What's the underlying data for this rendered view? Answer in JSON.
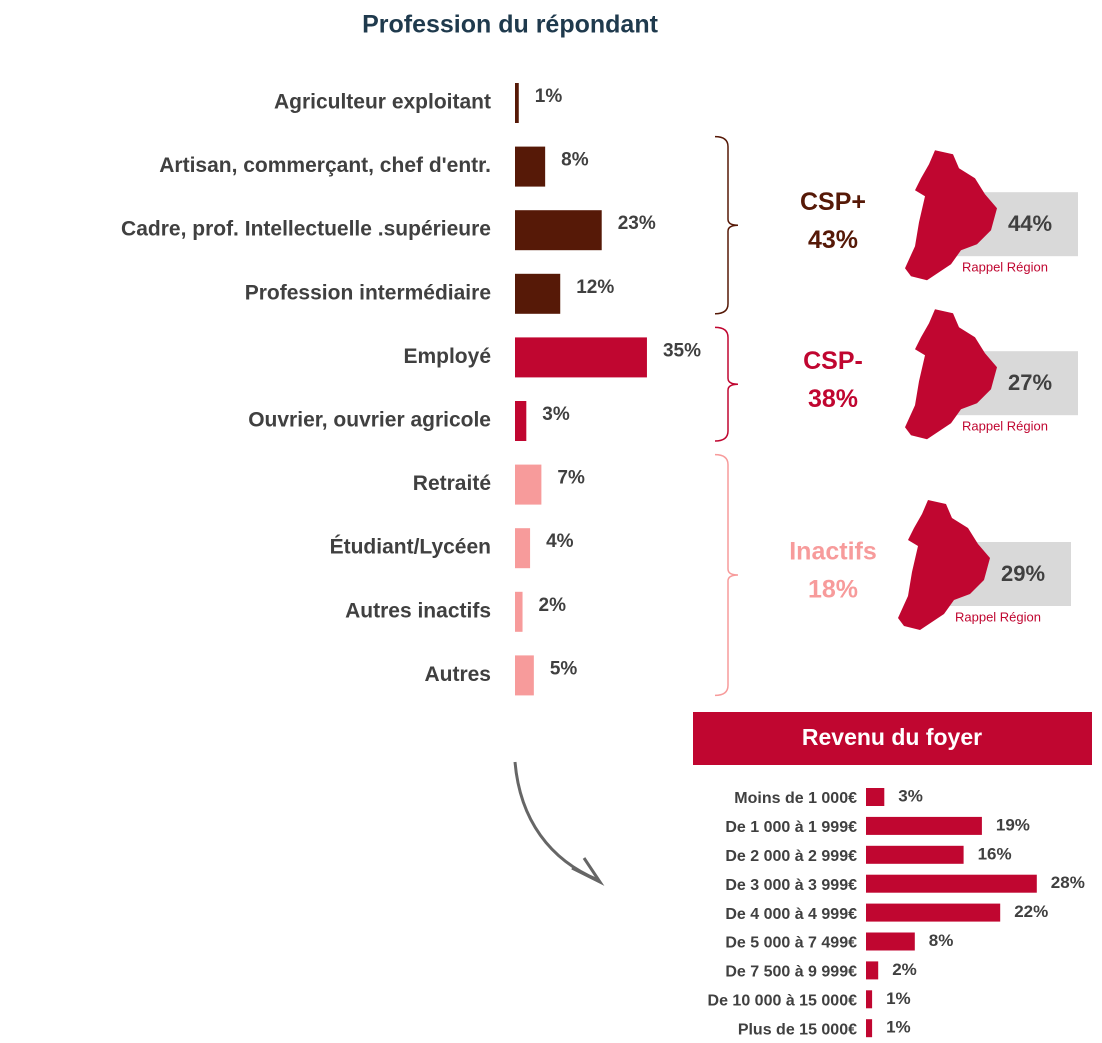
{
  "chart_data": [
    {
      "type": "bar",
      "orientation": "horizontal",
      "title": "Profession du répondant",
      "categories": [
        "Agriculteur exploitant",
        "Artisan, commerçant, chef d'entr.",
        "Cadre, prof. Intellectuelle .supérieure",
        "Profession intermédiaire",
        "Employé",
        "Ouvrier, ouvrier agricole",
        "Retraité",
        "Étudiant/Lycéen",
        "Autres inactifs",
        "Autres"
      ],
      "values": [
        1,
        8,
        23,
        12,
        35,
        3,
        7,
        4,
        2,
        5
      ],
      "value_labels": [
        "1%",
        "8%",
        "23%",
        "12%",
        "35%",
        "3%",
        "7%",
        "4%",
        "2%",
        "5%"
      ],
      "colors": [
        "#561907",
        "#561907",
        "#561907",
        "#561907",
        "#c00630",
        "#c00630",
        "#f79b9b",
        "#f79b9b",
        "#f79b9b",
        "#f79b9b"
      ],
      "groups": [
        {
          "name": "CSP+",
          "value": 43,
          "value_label": "43%",
          "color": "#561907",
          "region_value": 44,
          "region_label": "44%"
        },
        {
          "name": "CSP-",
          "value": 38,
          "value_label": "38%",
          "color": "#c00630",
          "region_value": 27,
          "region_label": "27%"
        },
        {
          "name": "Inactifs",
          "value": 18,
          "value_label": "18%",
          "color": "#f79b9b",
          "region_value": 29,
          "region_label": "29%"
        }
      ],
      "region_caption": "Rappel Région"
    },
    {
      "type": "bar",
      "orientation": "horizontal",
      "title": "Revenu du foyer",
      "categories": [
        "Moins de 1 000€",
        "De 1 000 à 1 999€",
        "De 2 000 à 2 999€",
        "De 3 000 à 3 999€",
        "De 4 000 à 4 999€",
        "De 5 000 à 7 499€",
        "De 7 500 à 9 999€",
        "De 10 000 à 15 000€",
        "Plus de 15 000€"
      ],
      "values": [
        3,
        19,
        16,
        28,
        22,
        8,
        2,
        1,
        1
      ],
      "value_labels": [
        "3%",
        "19%",
        "16%",
        "28%",
        "22%",
        "8%",
        "2%",
        "1%",
        "1%"
      ],
      "color": "#c00630"
    }
  ]
}
